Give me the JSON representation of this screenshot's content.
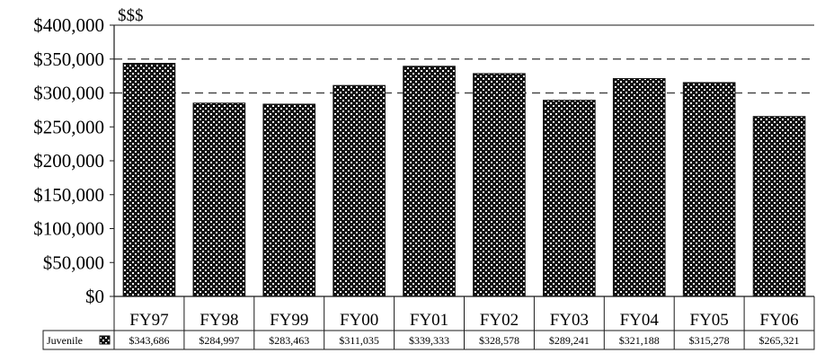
{
  "chart_data": {
    "type": "bar",
    "unit_label": "$$$",
    "categories": [
      "FY97",
      "FY98",
      "FY99",
      "FY00",
      "FY01",
      "FY02",
      "FY03",
      "FY04",
      "FY05",
      "FY06"
    ],
    "series": [
      {
        "name": "Juvenile",
        "values": [
          343686,
          284997,
          283463,
          311035,
          339333,
          328578,
          289241,
          321188,
          315278,
          265321
        ],
        "value_labels": [
          "$343,686",
          "$284,997",
          "$283,463",
          "$311,035",
          "$339,333",
          "$328,578",
          "$289,241",
          "$321,188",
          "$315,278",
          "$265,321"
        ]
      }
    ],
    "y_ticks": [
      0,
      50000,
      100000,
      150000,
      200000,
      250000,
      300000,
      350000,
      400000
    ],
    "y_tick_labels": [
      "$0",
      "$50,000",
      "$100,000",
      "$150,000",
      "$200,000",
      "$250,000",
      "$300,000",
      "$350,000",
      "$400,000"
    ],
    "ylim": [
      0,
      400000
    ],
    "gridlines": [
      300000,
      350000
    ],
    "grid_style": "dashed",
    "bar_fill": "dense black with white checker pattern",
    "legend": "data table below chart"
  }
}
